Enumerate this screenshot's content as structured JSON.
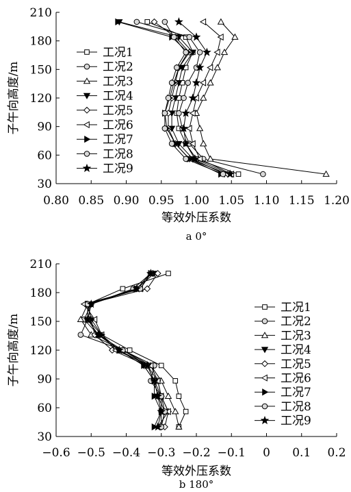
{
  "chart_data": [
    {
      "type": "line",
      "caption": "a 0°",
      "xlabel": "等效外压系数",
      "ylabel": "子午向高度/m",
      "xlim": [
        0.8,
        1.2
      ],
      "ylim": [
        30,
        210
      ],
      "xticks": [
        "0.80",
        "0.85",
        "0.90",
        "0.95",
        "1.00",
        "1.05",
        "1.10",
        "1.15",
        "1.20"
      ],
      "yticks": [
        "30",
        "60",
        "90",
        "120",
        "150",
        "180",
        "210"
      ],
      "y": [
        40,
        56,
        72,
        88,
        104,
        120,
        136,
        152,
        168,
        184,
        200
      ],
      "legend_position": "left",
      "series": [
        {
          "name": "工况1",
          "marker": "square",
          "x": [
            1.06,
            1.0,
            0.985,
            0.975,
            0.972,
            0.975,
            0.98,
            0.985,
            0.995,
            0.985,
            0.93
          ]
        },
        {
          "name": "工况2",
          "marker": "circle",
          "x": [
            1.095,
            1.01,
            0.99,
            0.98,
            0.975,
            0.982,
            0.988,
            1.0,
            1.005,
            0.99,
            0.915
          ]
        },
        {
          "name": "工况3",
          "marker": "triangle-up",
          "x": [
            1.185,
            1.02,
            1.01,
            1.005,
            1.0,
            1.01,
            1.02,
            1.03,
            1.04,
            1.055,
            1.035
          ]
        },
        {
          "name": "工况4",
          "marker": "triangle-down",
          "x": [
            1.04,
            0.995,
            0.975,
            0.965,
            0.965,
            0.97,
            0.975,
            0.98,
            0.995,
            0.975,
            0.89
          ]
        },
        {
          "name": "工况5",
          "marker": "diamond",
          "x": [
            1.045,
            0.99,
            0.97,
            0.96,
            0.96,
            0.965,
            0.97,
            0.975,
            0.99,
            0.97,
            0.94
          ]
        },
        {
          "name": "工况6",
          "marker": "triangle-left",
          "x": [
            1.05,
            1.005,
            0.995,
            0.99,
            0.995,
            1.0,
            1.01,
            1.02,
            1.03,
            1.035,
            1.01
          ]
        },
        {
          "name": "工况7",
          "marker": "triangle-right",
          "x": [
            1.035,
            0.99,
            0.97,
            0.958,
            0.955,
            0.962,
            0.968,
            0.975,
            0.988,
            0.965,
            0.888
          ]
        },
        {
          "name": "工况8",
          "marker": "circle",
          "x": [
            1.038,
            0.985,
            0.965,
            0.955,
            0.955,
            0.96,
            0.965,
            0.972,
            0.985,
            0.968,
            0.955
          ]
        },
        {
          "name": "工况9",
          "marker": "star",
          "x": [
            1.048,
            0.998,
            0.985,
            0.982,
            0.985,
            0.995,
            1.0,
            1.005,
            1.015,
            1.0,
            0.975
          ]
        }
      ]
    },
    {
      "type": "line",
      "caption": "b 180°",
      "xlabel": "等效外压系数",
      "ylabel": "子午向高度/m",
      "xlim": [
        -0.6,
        0.2
      ],
      "ylim": [
        30,
        210
      ],
      "xticks": [
        "−0.6",
        "−0.5",
        "−0.4",
        "−0.3",
        "−0.2",
        "−0.1",
        "0",
        "0.1",
        "0.2"
      ],
      "yticks": [
        "30",
        "60",
        "90",
        "120",
        "150",
        "180",
        "210"
      ],
      "y": [
        40,
        56,
        72,
        88,
        104,
        120,
        136,
        152,
        168,
        184,
        200
      ],
      "legend_position": "right",
      "series": [
        {
          "name": "工况1",
          "marker": "square",
          "x": [
            -0.25,
            -0.23,
            -0.25,
            -0.26,
            -0.3,
            -0.39,
            -0.47,
            -0.51,
            -0.51,
            -0.41,
            -0.28
          ]
        },
        {
          "name": "工况2",
          "marker": "circle",
          "x": [
            -0.3,
            -0.3,
            -0.3,
            -0.33,
            -0.32,
            -0.41,
            -0.48,
            -0.52,
            -0.5,
            -0.38,
            -0.33
          ]
        },
        {
          "name": "工况3",
          "marker": "triangle-up",
          "x": [
            -0.25,
            -0.26,
            -0.28,
            -0.3,
            -0.33,
            -0.41,
            -0.5,
            -0.53,
            -0.51,
            -0.36,
            -0.33
          ]
        },
        {
          "name": "工况4",
          "marker": "triangle-down",
          "x": [
            -0.3,
            -0.29,
            -0.31,
            -0.32,
            -0.35,
            -0.42,
            -0.48,
            -0.51,
            -0.5,
            -0.37,
            -0.32
          ]
        },
        {
          "name": "工况5",
          "marker": "diamond",
          "x": [
            -0.29,
            -0.28,
            -0.3,
            -0.31,
            -0.34,
            -0.44,
            -0.49,
            -0.5,
            -0.51,
            -0.34,
            -0.31
          ]
        },
        {
          "name": "工况6",
          "marker": "triangle-left",
          "x": [
            -0.31,
            -0.28,
            -0.3,
            -0.31,
            -0.33,
            -0.43,
            -0.47,
            -0.49,
            -0.52,
            -0.36,
            -0.33
          ]
        },
        {
          "name": "工况7",
          "marker": "triangle-right",
          "x": [
            -0.32,
            -0.3,
            -0.32,
            -0.32,
            -0.35,
            -0.42,
            -0.47,
            -0.5,
            -0.51,
            -0.37,
            -0.33
          ]
        },
        {
          "name": "工况8",
          "marker": "circle",
          "x": [
            -0.3,
            -0.29,
            -0.3,
            -0.32,
            -0.34,
            -0.41,
            -0.53,
            -0.51,
            -0.51,
            -0.36,
            -0.33
          ]
        },
        {
          "name": "工况9",
          "marker": "star",
          "x": [
            -0.31,
            -0.3,
            -0.31,
            -0.32,
            -0.34,
            -0.42,
            -0.48,
            -0.51,
            -0.5,
            -0.37,
            -0.33
          ]
        }
      ]
    }
  ]
}
